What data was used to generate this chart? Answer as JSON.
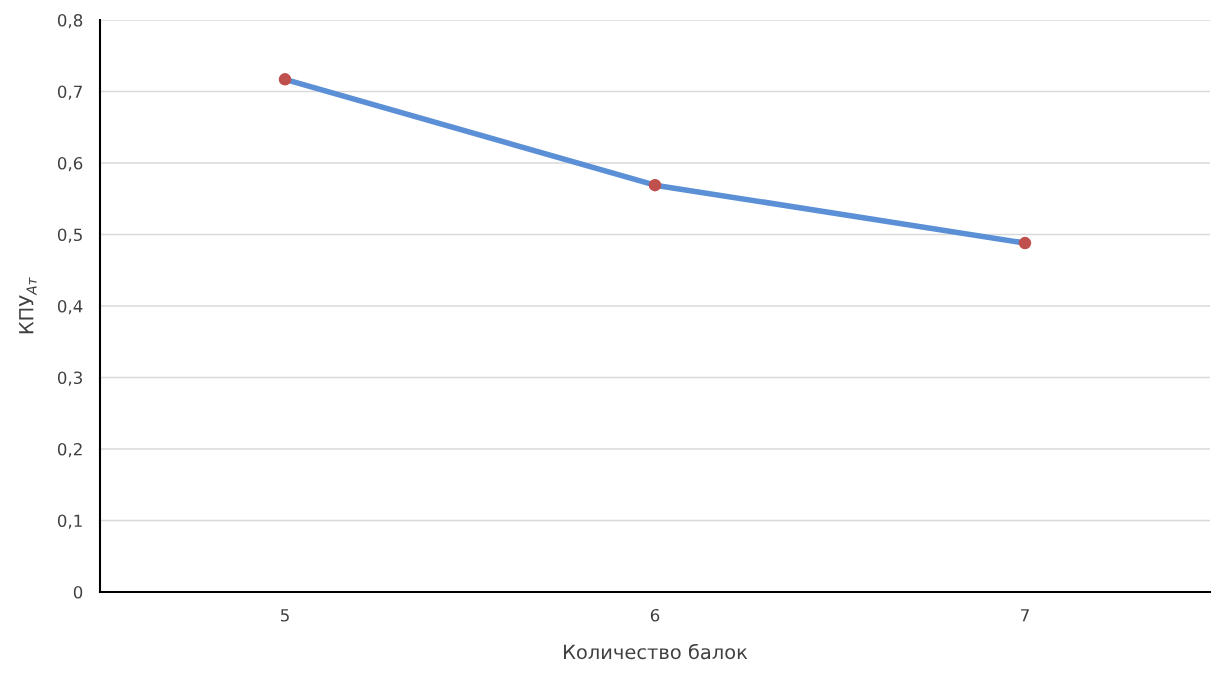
{
  "chart_data": {
    "type": "line",
    "xlabel": "Количество балок",
    "ylabel": "КПУ$_{Ат}$",
    "categories": [
      "5",
      "6",
      "7"
    ],
    "series": [
      {
        "color": "#5b8fd6",
        "values": [
          0.717,
          0.569,
          0.488
        ]
      },
      {
        "type": "scatter",
        "marker": "circle",
        "color": "#c0504d",
        "x": [
          "5",
          "6",
          "7"
        ],
        "values": [
          0.717,
          0.569,
          0.488
        ]
      }
    ],
    "line_style": "solid",
    "ylim": [
      0,
      0.8
    ],
    "yticks": [
      {
        "value": 0,
        "label": "0"
      },
      {
        "value": 0.1,
        "label": "0,1"
      },
      {
        "value": 0.2,
        "label": "0,2"
      },
      {
        "value": 0.3,
        "label": "0,3"
      },
      {
        "value": 0.4,
        "label": "0,4"
      },
      {
        "value": 0.5,
        "label": "0,5"
      },
      {
        "value": 0.6,
        "label": "0,6"
      },
      {
        "value": 0.7,
        "label": "0,7"
      },
      {
        "value": 0.8,
        "label": "0,8"
      }
    ],
    "grid": "y"
  }
}
